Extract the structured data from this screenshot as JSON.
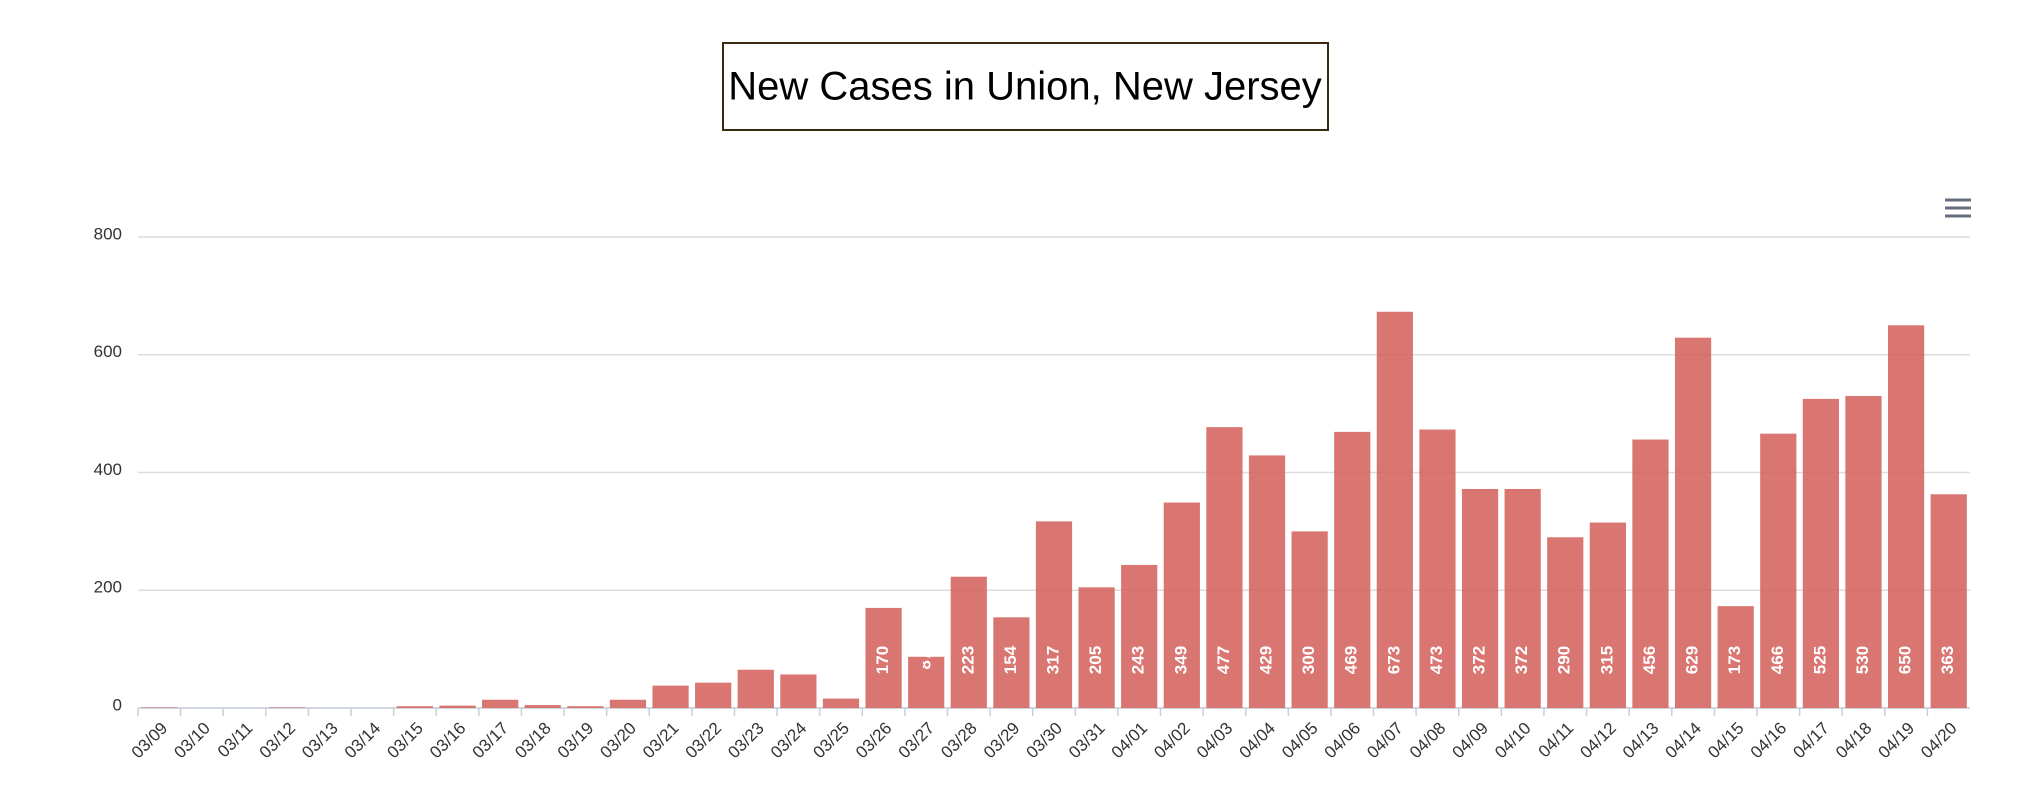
{
  "chart_data": {
    "type": "bar",
    "title": "New Cases in Union, New Jersey",
    "categories": [
      "03/09",
      "03/10",
      "03/11",
      "03/12",
      "03/13",
      "03/14",
      "03/15",
      "03/16",
      "03/17",
      "03/18",
      "03/19",
      "03/20",
      "03/21",
      "03/22",
      "03/23",
      "03/24",
      "03/25",
      "03/26",
      "03/27",
      "03/28",
      "03/29",
      "03/30",
      "03/31",
      "04/01",
      "04/02",
      "04/03",
      "04/04",
      "04/05",
      "04/06",
      "04/07",
      "04/08",
      "04/09",
      "04/10",
      "04/11",
      "04/12",
      "04/13",
      "04/14",
      "04/15",
      "04/16",
      "04/17",
      "04/18",
      "04/19",
      "04/20"
    ],
    "values": [
      1,
      0,
      0,
      1,
      0,
      0,
      3,
      4,
      14,
      5,
      3,
      14,
      38,
      43,
      65,
      57,
      16,
      170,
      87,
      223,
      154,
      317,
      205,
      243,
      349,
      477,
      429,
      300,
      469,
      673,
      473,
      372,
      372,
      290,
      315,
      456,
      629,
      173,
      466,
      525,
      530,
      650,
      363
    ],
    "color": "#d4635e",
    "ylim": [
      0,
      800
    ],
    "yticks": [
      0,
      200,
      400,
      600,
      800
    ],
    "grid": true
  }
}
